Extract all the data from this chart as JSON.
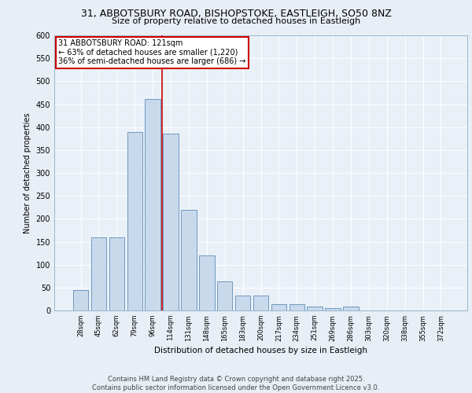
{
  "title_line1": "31, ABBOTSBURY ROAD, BISHOPSTOKE, EASTLEIGH, SO50 8NZ",
  "title_line2": "Size of property relative to detached houses in Eastleigh",
  "xlabel": "Distribution of detached houses by size in Eastleigh",
  "ylabel": "Number of detached properties",
  "categories": [
    "28sqm",
    "45sqm",
    "62sqm",
    "79sqm",
    "96sqm",
    "114sqm",
    "131sqm",
    "148sqm",
    "165sqm",
    "183sqm",
    "200sqm",
    "217sqm",
    "234sqm",
    "251sqm",
    "269sqm",
    "286sqm",
    "303sqm",
    "320sqm",
    "338sqm",
    "355sqm",
    "372sqm"
  ],
  "values": [
    44,
    160,
    160,
    390,
    462,
    385,
    220,
    120,
    63,
    32,
    32,
    13,
    13,
    8,
    5,
    8,
    0,
    0,
    0,
    0,
    0
  ],
  "bar_color": "#c9d9ec",
  "bar_edge_color": "#5b8db8",
  "vline_color": "#cc0000",
  "annotation_title": "31 ABBOTSBURY ROAD: 121sqm",
  "annotation_line1": "← 63% of detached houses are smaller (1,220)",
  "annotation_line2": "36% of semi-detached houses are larger (686) →",
  "annotation_box_color": "#cc0000",
  "ylim": [
    0,
    600
  ],
  "yticks": [
    0,
    50,
    100,
    150,
    200,
    250,
    300,
    350,
    400,
    450,
    500,
    550,
    600
  ],
  "footer_line1": "Contains HM Land Registry data © Crown copyright and database right 2025.",
  "footer_line2": "Contains public sector information licensed under the Open Government Licence v3.0.",
  "bg_color": "#e8eef5",
  "plot_bg_color": "#eaf0f7"
}
